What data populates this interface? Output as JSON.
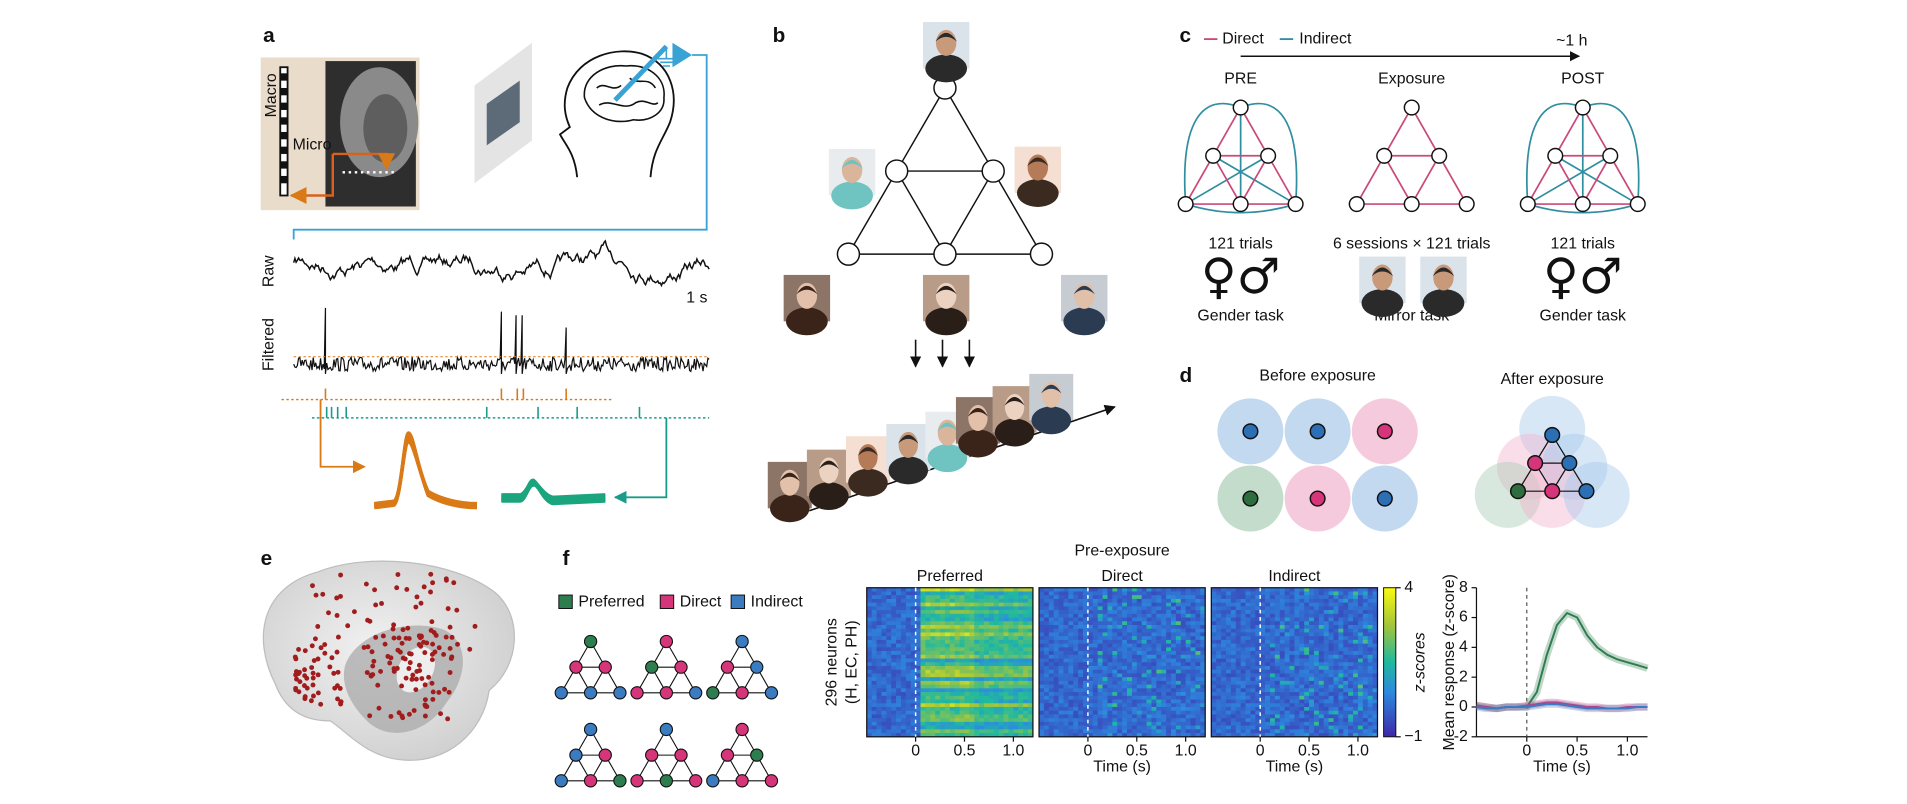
{
  "panel_labels": [
    "a",
    "b",
    "c",
    "d",
    "e",
    "f"
  ],
  "panel_a": {
    "macro": "Macro",
    "micro": "Micro",
    "raw": "Raw",
    "filtered": "Filtered",
    "scale": "1 s"
  },
  "panel_c": {
    "legend": [
      "Direct",
      "Indirect"
    ],
    "duration": "~1 h",
    "phases": [
      {
        "title": "PRE",
        "trials": "121 trials",
        "symbols": "♀♂",
        "task": "Gender task"
      },
      {
        "title": "Exposure",
        "trials": "6 sessions × 121 trials",
        "task": "Mirror task"
      },
      {
        "title": "POST",
        "trials": "121 trials",
        "symbols": "♀♂",
        "task": "Gender task"
      }
    ]
  },
  "panel_d": {
    "before": "Before exposure",
    "after": "After exposure"
  },
  "panel_f": {
    "heading": "Pre-exposure",
    "series": [
      {
        "name": "Preferred",
        "color": "#2e7d4f",
        "response": [
          0.1,
          0.0,
          -0.1,
          0.0,
          0.0,
          0.0,
          1.0,
          3.5,
          5.5,
          6.3,
          6.0,
          4.8,
          4.0,
          3.5,
          3.2,
          3.0,
          2.8,
          2.6
        ]
      },
      {
        "name": "Direct",
        "color": "#d6357a",
        "response": [
          0.1,
          0.0,
          -0.1,
          0.0,
          0.0,
          0.1,
          0.2,
          0.3,
          0.3,
          0.2,
          0.1,
          0.0,
          0.0,
          -0.1,
          -0.1,
          0.0,
          0.0,
          0.0
        ]
      },
      {
        "name": "Indirect",
        "color": "#3b7bbf",
        "response": [
          0.0,
          -0.1,
          -0.1,
          0.0,
          0.0,
          0.0,
          0.1,
          0.2,
          0.2,
          0.1,
          0.0,
          -0.1,
          -0.1,
          -0.1,
          -0.1,
          -0.1,
          0.0,
          0.0
        ]
      }
    ],
    "heatmap_titles": [
      "Preferred",
      "Direct",
      "Indirect"
    ],
    "heatmap_ylabel": [
      "296 neurons",
      "(H, EC, PH)"
    ],
    "colorbar_label": "z-scores",
    "clim": [
      -1,
      4
    ],
    "colorbar_ticks": [
      4,
      {
        "value": -1,
        "label": "−1"
      }
    ],
    "xlim": [
      -0.5,
      1.2
    ],
    "xticks": [
      0,
      0.5,
      {
        "value": 1,
        "label": "1.0"
      }
    ],
    "xlabel": "Time (s)",
    "response_plot": {
      "ylabel": "Mean response (z-score)",
      "x": [
        -0.5,
        -0.4,
        -0.3,
        -0.2,
        -0.1,
        0,
        0.1,
        0.2,
        0.3,
        0.4,
        0.5,
        0.6,
        0.7,
        0.8,
        0.9,
        1.0,
        1.1,
        1.2
      ],
      "ylim": [
        -2,
        8
      ],
      "yticks": [
        -2,
        0,
        2,
        4,
        6,
        8
      ]
    }
  }
}
